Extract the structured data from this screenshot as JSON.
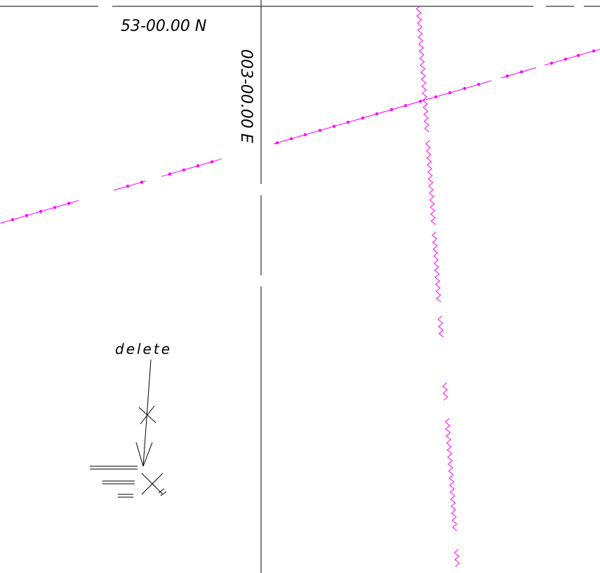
{
  "map": {
    "latitude_label": "53-00.00 N",
    "longitude_label": "003-00.00 E",
    "annotation_label": "delete",
    "colors": {
      "background": "#ffffff",
      "graticule": "#000000",
      "magenta": "#ff00ff",
      "symbol": "#000000"
    },
    "features": [
      {
        "name": "latitude-line",
        "type": "graticule"
      },
      {
        "name": "longitude-line",
        "type": "graticule"
      },
      {
        "name": "magenta-dotted-route",
        "type": "route-with-dots"
      },
      {
        "name": "magenta-wavy-boundary",
        "type": "wavy-line"
      },
      {
        "name": "delete-annotation",
        "type": "annotation-with-arrow"
      },
      {
        "name": "wreck-symbol",
        "type": "chart-symbol"
      }
    ]
  }
}
